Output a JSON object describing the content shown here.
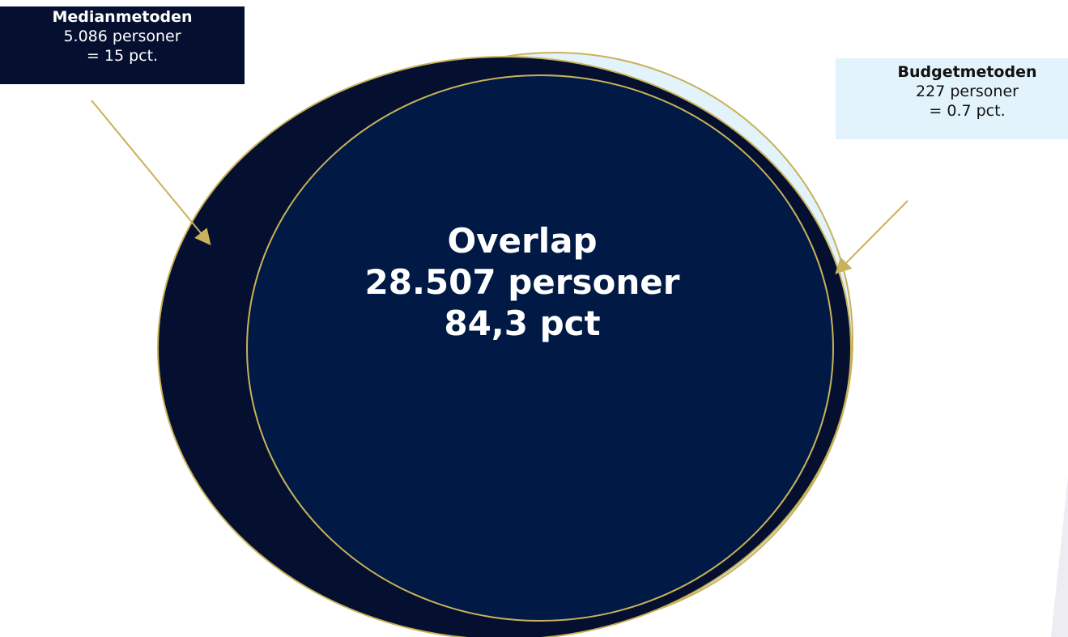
{
  "median": {
    "title": "Medianmetoden",
    "count": "5.086 personer",
    "share": "= 15 pct."
  },
  "budget": {
    "title": "Budgetmetoden",
    "count": "227 personer",
    "share": "= 0.7 pct."
  },
  "overlap": {
    "title": "Overlap",
    "count": "28.507 personer",
    "share": "84,3 pct"
  },
  "colors": {
    "median_fill": "#050f30",
    "overlap_fill": "#011a45",
    "budget_fill": "#e3f3fb",
    "outline": "#c8b25a",
    "arrow": "#c8b25a"
  }
}
